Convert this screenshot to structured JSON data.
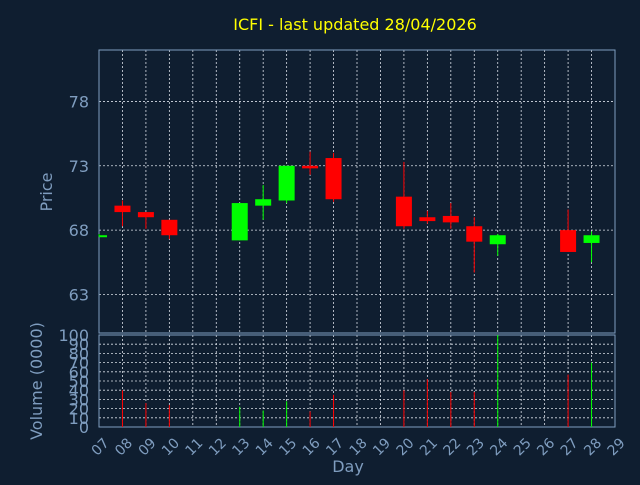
{
  "chart_data": {
    "type": "candlestick",
    "title": "ICFI - last updated 28/04/2026",
    "xlabel": "Day",
    "price_panel": {
      "ylabel": "Price",
      "ylim": [
        60,
        82
      ],
      "yticks": [
        63,
        68,
        73,
        78
      ],
      "grid": true
    },
    "volume_panel": {
      "ylabel": "Volume (0000)",
      "ylim": [
        0,
        100
      ],
      "yticks": [
        0,
        10,
        20,
        30,
        40,
        50,
        60,
        70,
        80,
        90,
        100
      ],
      "grid": true
    },
    "x_ticks": [
      "07",
      "08",
      "09",
      "10",
      "11",
      "12",
      "13",
      "14",
      "15",
      "16",
      "17",
      "18",
      "19",
      "20",
      "21",
      "22",
      "23",
      "24",
      "25",
      "26",
      "27",
      "28",
      "29"
    ],
    "candles": [
      {
        "day": "07",
        "open": 67.6,
        "high": 67.7,
        "low": 67.5,
        "close": 67.6,
        "volume": 0
      },
      {
        "day": "08",
        "open": 69.9,
        "high": 70.3,
        "low": 68.3,
        "close": 69.4,
        "volume": 40
      },
      {
        "day": "09",
        "open": 69.4,
        "high": 69.4,
        "low": 68.1,
        "close": 69.0,
        "volume": 26
      },
      {
        "day": "10",
        "open": 68.8,
        "high": 68.8,
        "low": 67.3,
        "close": 67.6,
        "volume": 24
      },
      {
        "day": "13",
        "open": 67.2,
        "high": 70.1,
        "low": 67.2,
        "close": 70.1,
        "volume": 22
      },
      {
        "day": "14",
        "open": 69.9,
        "high": 71.5,
        "low": 68.8,
        "close": 70.4,
        "volume": 18
      },
      {
        "day": "15",
        "open": 70.3,
        "high": 73.0,
        "low": 70.1,
        "close": 73.0,
        "volume": 28
      },
      {
        "day": "16",
        "open": 73.0,
        "high": 74.1,
        "low": 72.3,
        "close": 72.8,
        "volume": 17
      },
      {
        "day": "17",
        "open": 73.6,
        "high": 74.0,
        "low": 70.2,
        "close": 70.4,
        "volume": 35
      },
      {
        "day": "20",
        "open": 70.6,
        "high": 73.3,
        "low": 68.1,
        "close": 68.3,
        "volume": 40
      },
      {
        "day": "21",
        "open": 69.0,
        "high": 69.5,
        "low": 68.5,
        "close": 68.7,
        "volume": 52
      },
      {
        "day": "22",
        "open": 69.1,
        "high": 70.1,
        "low": 68.1,
        "close": 68.6,
        "volume": 38
      },
      {
        "day": "23",
        "open": 68.3,
        "high": 69.0,
        "low": 64.7,
        "close": 67.1,
        "volume": 38
      },
      {
        "day": "24",
        "open": 66.9,
        "high": 67.7,
        "low": 66.0,
        "close": 67.6,
        "volume": 100
      },
      {
        "day": "27",
        "open": 68.0,
        "high": 69.6,
        "low": 66.3,
        "close": 66.3,
        "volume": 57
      },
      {
        "day": "28",
        "open": 67.0,
        "high": 67.9,
        "low": 65.5,
        "close": 67.6,
        "volume": 70
      }
    ],
    "colors": {
      "background": "#0f1e30",
      "title": "#ffff00",
      "axis_text": "#7f9dbf",
      "frame": "#7f9dbf",
      "grid": "#d8dde6",
      "up": "#00ff00",
      "down": "#ff0000"
    }
  }
}
